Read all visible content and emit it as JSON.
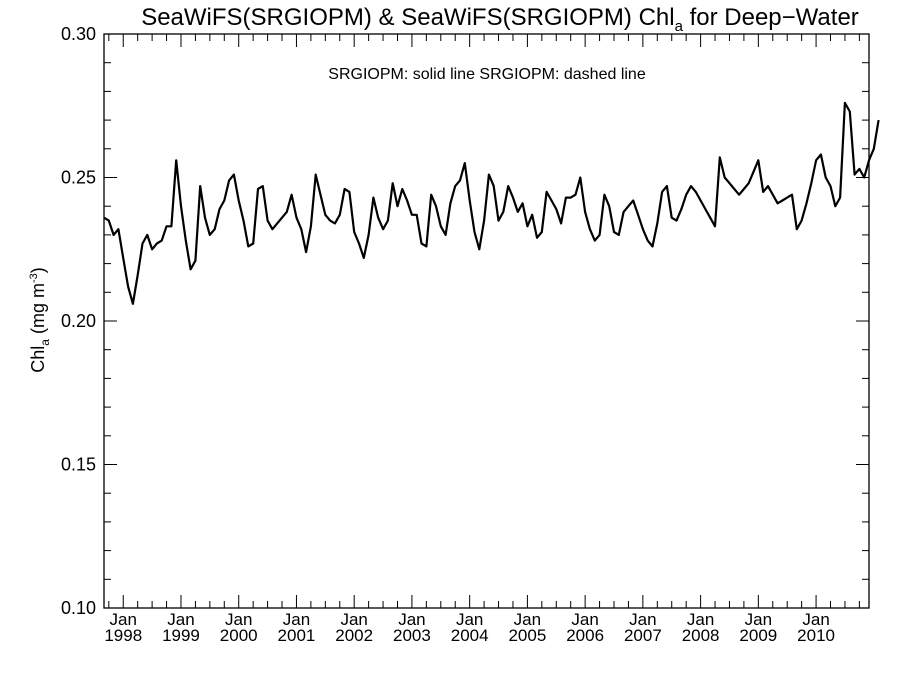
{
  "chart_data": {
    "type": "line",
    "title": {
      "prefix": "SeaWiFS(SRGIOPM) & SeaWiFS(SRGIOPM)  Chl",
      "subscript": "a",
      "suffix": " for Deep−Water"
    },
    "ylabel": {
      "prefix": "Chl",
      "subscript": "a",
      "middle": " (mg m",
      "superscript": "-3",
      "suffix": ")"
    },
    "legend_text": "SRGIOPM: solid line   SRGIOPM: dashed line",
    "ylim": [
      0.1,
      0.3
    ],
    "y_ticks": [
      "0.10",
      "0.15",
      "0.20",
      "0.25",
      "0.30"
    ],
    "y_tick_values": [
      0.1,
      0.15,
      0.2,
      0.25,
      0.3
    ],
    "xlim": [
      "1997-09",
      "2010-12"
    ],
    "x_tick_month": "Jan",
    "x_tick_years": [
      "1998",
      "1999",
      "2000",
      "2001",
      "2002",
      "2003",
      "2004",
      "2005",
      "2006",
      "2007",
      "2008",
      "2009",
      "2010"
    ],
    "series": [
      {
        "style": "solid",
        "color": "#000000",
        "start": "1997-09",
        "values": [
          0.236,
          0.235,
          0.23,
          0.232,
          0.222,
          0.212,
          0.206,
          0.216,
          0.227,
          0.23,
          0.225,
          0.227,
          0.228,
          0.233,
          0.233,
          0.256,
          0.24,
          0.228,
          0.218,
          0.221,
          0.247,
          0.236,
          0.23,
          0.232,
          0.239,
          0.242,
          0.249,
          0.251,
          0.242,
          0.235,
          0.226,
          0.227,
          0.246,
          0.247,
          0.235,
          0.232,
          0.234,
          0.236,
          0.238,
          0.244,
          0.236,
          0.232,
          0.224,
          0.233,
          0.251,
          0.244,
          0.237,
          0.235,
          0.234,
          0.237,
          0.246,
          0.245,
          0.231,
          0.227,
          0.222,
          0.23,
          0.243,
          0.236,
          0.232,
          0.235,
          0.248,
          0.24,
          0.246,
          0.242,
          0.237,
          0.237,
          0.227,
          0.226,
          0.244,
          0.24,
          0.233,
          0.23,
          0.241,
          0.247,
          0.249,
          0.255,
          0.242,
          0.231,
          0.225,
          0.235,
          0.251,
          0.247,
          0.235,
          0.238,
          0.247,
          0.243,
          0.238,
          0.241,
          0.233,
          0.237,
          0.229,
          0.231,
          0.245,
          0.242,
          0.239,
          0.234,
          0.243,
          0.243,
          0.244,
          0.25,
          0.238,
          0.232,
          0.228,
          0.23,
          0.244,
          0.24,
          0.231,
          0.23,
          0.238,
          0.24,
          0.242,
          0.237,
          0.232,
          0.228,
          0.226,
          0.234,
          0.245,
          0.247,
          0.236,
          0.235,
          0.239,
          0.244,
          0.247,
          0.245,
          0.242,
          0.239,
          0.236,
          0.233,
          0.257,
          0.25,
          0.248,
          0.246,
          0.244,
          0.246,
          0.248,
          0.252,
          0.256,
          0.245,
          0.247,
          0.244,
          0.241,
          0.242,
          0.243,
          0.244,
          0.232,
          0.235,
          0.241,
          0.248,
          0.256,
          0.258,
          0.25,
          0.247,
          0.24,
          0.243,
          0.276,
          0.273,
          0.251,
          0.253,
          0.25,
          0.256,
          0.26,
          0.27
        ]
      }
    ]
  }
}
